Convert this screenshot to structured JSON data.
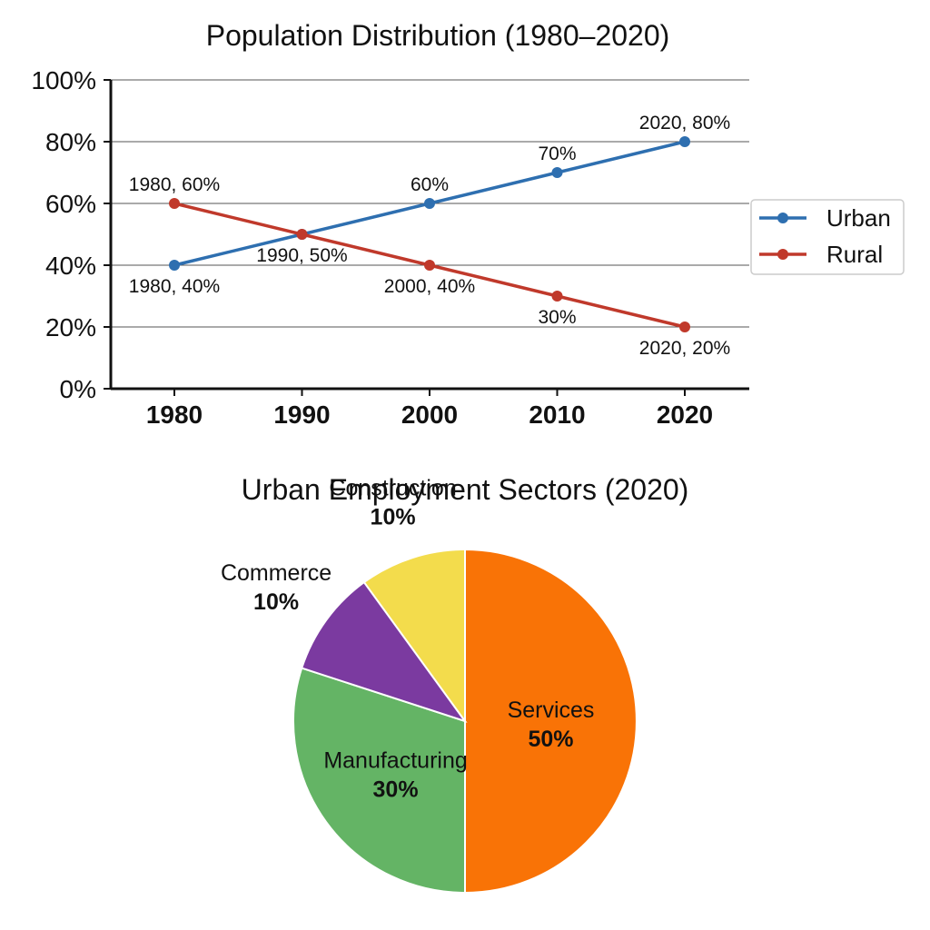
{
  "chart_data": [
    {
      "type": "line",
      "title": "Population Distribution (1980–2020)",
      "xlabel": "",
      "ylabel": "",
      "x": [
        "1980",
        "1990",
        "2000",
        "2010",
        "2020"
      ],
      "ylim": [
        0,
        100
      ],
      "y_ticks": [
        "0%",
        "20%",
        "40%",
        "60%",
        "80%",
        "100%"
      ],
      "grid": "horizontal",
      "legend_position": "right",
      "series": [
        {
          "name": "Urban",
          "values": [
            40,
            50,
            60,
            70,
            80
          ],
          "color": "#2e6fb0",
          "point_labels": [
            {
              "index": 0,
              "text": "1980, 40%",
              "placement": "below-left"
            },
            {
              "index": 2,
              "text": "60%",
              "placement": "above"
            },
            {
              "index": 3,
              "text": "70%",
              "placement": "above"
            },
            {
              "index": 4,
              "text": "2020, 80%",
              "placement": "above"
            }
          ]
        },
        {
          "name": "Rural",
          "values": [
            60,
            50,
            40,
            30,
            20
          ],
          "color": "#c0392b",
          "point_labels": [
            {
              "index": 0,
              "text": "1980, 60%",
              "placement": "above"
            },
            {
              "index": 1,
              "text": "1990, 50%",
              "placement": "below"
            },
            {
              "index": 2,
              "text": "2000, 40%",
              "placement": "below"
            },
            {
              "index": 3,
              "text": "30%",
              "placement": "below"
            },
            {
              "index": 4,
              "text": "2020, 20%",
              "placement": "below"
            }
          ]
        }
      ]
    },
    {
      "type": "pie",
      "title": "Urban Employment Sectors (2020)",
      "slices": [
        {
          "name": "Services",
          "value": 50,
          "label": "50%",
          "color": "#f97306",
          "label_inside": true
        },
        {
          "name": "Manufacturing",
          "value": 30,
          "label": "30%",
          "color": "#64b465",
          "label_inside": true
        },
        {
          "name": "Commerce",
          "value": 10,
          "label": "10%",
          "color": "#7b3aa0",
          "label_inside": false
        },
        {
          "name": "Construction",
          "value": 10,
          "label": "10%",
          "color": "#f3dc4c",
          "label_inside": false
        }
      ]
    }
  ]
}
